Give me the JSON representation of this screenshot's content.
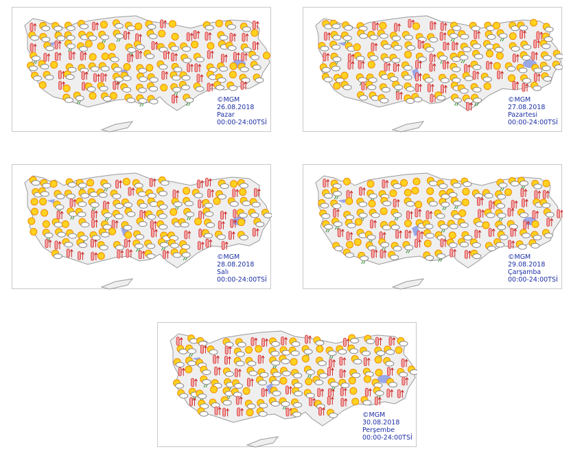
{
  "panels": [
    {
      "copyright": "©MGM",
      "date": "26.08.2018",
      "day": "Pazar",
      "hours": "00:00-24:00TSİ"
    },
    {
      "copyright": "©MGM",
      "date": "27.08.2018",
      "day": "Pazartesi",
      "hours": "00:00-24:00TSİ"
    },
    {
      "copyright": "©MGM",
      "date": "28.08.2018",
      "day": "Salı",
      "hours": "00:00-24:00TSİ"
    },
    {
      "copyright": "©MGM",
      "date": "29.08.2018",
      "day": "Çarşamba",
      "hours": "00:00-24:00TSİ"
    },
    {
      "copyright": "©MGM",
      "date": "30.08.2018",
      "day": "Perşembe",
      "hours": "00:00-24:00TSİ"
    }
  ]
}
